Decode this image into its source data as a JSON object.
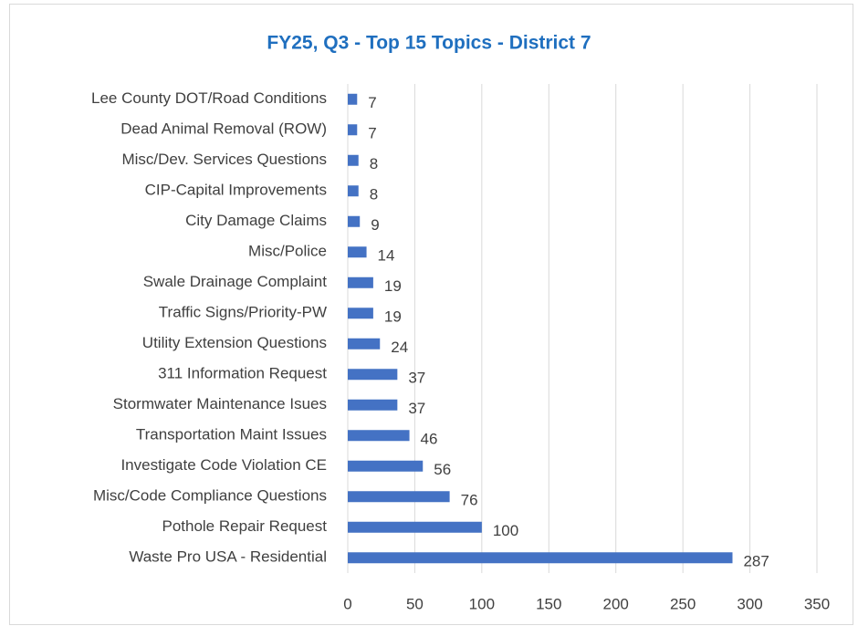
{
  "chart_data": {
    "type": "bar",
    "orientation": "horizontal",
    "title": "FY25, Q3 - Top 15 Topics - District 7",
    "categories": [
      "Lee County DOT/Road Conditions",
      "Dead Animal Removal (ROW)",
      "Misc/Dev. Services Questions",
      "CIP-Capital Improvements",
      "City Damage Claims",
      "Misc/Police",
      "Swale Drainage Complaint",
      "Traffic Signs/Priority-PW",
      "Utility Extension Questions",
      "311 Information Request",
      "Stormwater Maintenance Isues",
      "Transportation Maint Issues",
      "Investigate Code Violation CE",
      "Misc/Code Compliance Questions",
      "Pothole Repair Request",
      "Waste Pro USA - Residential"
    ],
    "values": [
      7,
      7,
      8,
      8,
      9,
      14,
      19,
      19,
      24,
      37,
      37,
      46,
      56,
      76,
      100,
      287
    ],
    "color": "#4472c4",
    "xlim": [
      0,
      350
    ],
    "xticks": [
      0,
      50,
      100,
      150,
      200,
      250,
      300,
      350
    ],
    "grid": true
  }
}
